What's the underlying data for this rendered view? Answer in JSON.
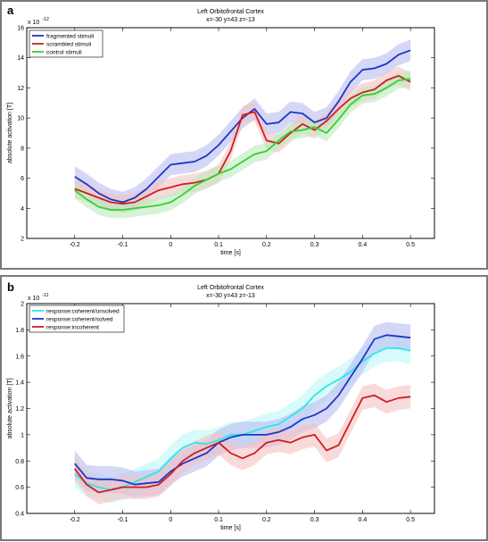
{
  "chart_data": [
    {
      "type": "line",
      "panel_label": "a",
      "title": "Left Orbitofrontal Cortex",
      "subtitle": "x=-30 y=43 z=-13",
      "xlabel": "time [s]",
      "ylabel": "absolute activation [T]",
      "y_multiplier": "x 10",
      "y_exponent": "-12",
      "xlim": [
        -0.3,
        0.55
      ],
      "ylim": [
        2,
        16
      ],
      "xticks": [
        -0.2,
        -0.1,
        0,
        0.1,
        0.2,
        0.3,
        0.4,
        0.5
      ],
      "yticks": [
        2,
        4,
        6,
        8,
        10,
        12,
        14,
        16
      ],
      "x": [
        -0.2,
        -0.175,
        -0.15,
        -0.125,
        -0.1,
        -0.075,
        -0.05,
        -0.025,
        0,
        0.025,
        0.05,
        0.075,
        0.1,
        0.125,
        0.15,
        0.175,
        0.2,
        0.225,
        0.25,
        0.275,
        0.3,
        0.325,
        0.35,
        0.375,
        0.4,
        0.425,
        0.45,
        0.475,
        0.5
      ],
      "legend_position": "top-left",
      "grid": false,
      "series": [
        {
          "name": "fragmented stimuli",
          "color": "#1f35c8",
          "band": "#b9bdf2",
          "band_width": 0.7,
          "values": [
            6.1,
            5.6,
            5.0,
            4.6,
            4.4,
            4.7,
            5.3,
            6.1,
            6.9,
            7.0,
            7.1,
            7.5,
            8.2,
            9.1,
            10.0,
            10.6,
            9.6,
            9.7,
            10.4,
            10.3,
            9.7,
            10.0,
            11.1,
            12.4,
            13.2,
            13.3,
            13.6,
            14.2,
            14.5
          ]
        },
        {
          "name": "scrambled stimuli",
          "color": "#cf1f1f",
          "band": "#f5c1c1",
          "band_width": 0.6,
          "values": [
            5.3,
            5.0,
            4.7,
            4.4,
            4.3,
            4.4,
            4.8,
            5.2,
            5.4,
            5.6,
            5.7,
            5.9,
            6.3,
            7.8,
            10.2,
            10.4,
            8.5,
            8.3,
            9.0,
            9.6,
            9.2,
            9.8,
            10.6,
            11.3,
            11.7,
            11.9,
            12.5,
            12.8,
            12.4
          ]
        },
        {
          "name": "control stimuli",
          "color": "#2dd42d",
          "band": "#bdebbd",
          "band_width": 0.55,
          "values": [
            5.2,
            4.6,
            4.1,
            3.9,
            3.9,
            4.0,
            4.1,
            4.2,
            4.4,
            4.9,
            5.5,
            5.9,
            6.3,
            6.6,
            7.1,
            7.6,
            7.8,
            8.5,
            9.1,
            9.2,
            9.4,
            9.0,
            9.9,
            10.9,
            11.5,
            11.6,
            12.0,
            12.5,
            12.6
          ]
        }
      ]
    },
    {
      "type": "line",
      "panel_label": "b",
      "title": "Left Orbitofrontal Cortex",
      "subtitle": "x=-30 y=43 z=-13",
      "xlabel": "time [s]",
      "ylabel": "absolute activation [T]",
      "y_multiplier": "x 10",
      "y_exponent": "-11",
      "xlim": [
        -0.3,
        0.55
      ],
      "ylim": [
        0.4,
        2.0
      ],
      "xticks": [
        -0.2,
        -0.1,
        0,
        0.1,
        0.2,
        0.3,
        0.4,
        0.5
      ],
      "yticks": [
        0.4,
        0.6,
        0.8,
        1.0,
        1.2,
        1.4,
        1.6,
        1.8,
        2.0
      ],
      "ytick_labels": [
        "0.4",
        "0.6",
        "0.8",
        "1",
        "1.2",
        "1.4",
        "1.6",
        "1.8",
        "2"
      ],
      "x": [
        -0.2,
        -0.175,
        -0.15,
        -0.125,
        -0.1,
        -0.075,
        -0.05,
        -0.025,
        0,
        0.025,
        0.05,
        0.075,
        0.1,
        0.125,
        0.15,
        0.175,
        0.2,
        0.225,
        0.25,
        0.275,
        0.3,
        0.325,
        0.35,
        0.375,
        0.4,
        0.425,
        0.45,
        0.475,
        0.5
      ],
      "legend_position": "top-left",
      "grid": false,
      "series": [
        {
          "name": "response:coherent/unsolved",
          "color": "#2ee6e6",
          "band": "#bdf6f6",
          "band_width": 0.1,
          "values": [
            0.7,
            0.63,
            0.6,
            0.58,
            0.6,
            0.64,
            0.68,
            0.72,
            0.82,
            0.9,
            0.94,
            0.93,
            0.96,
            1.0,
            1.0,
            1.03,
            1.06,
            1.08,
            1.14,
            1.2,
            1.3,
            1.37,
            1.42,
            1.48,
            1.56,
            1.62,
            1.66,
            1.66,
            1.64
          ]
        },
        {
          "name": "response:coherent/solved",
          "color": "#1f35c8",
          "band": "#b9bdf2",
          "band_width": 0.1,
          "values": [
            0.78,
            0.67,
            0.66,
            0.66,
            0.65,
            0.62,
            0.63,
            0.64,
            0.72,
            0.78,
            0.82,
            0.86,
            0.94,
            0.98,
            1.0,
            1.0,
            1.0,
            1.02,
            1.06,
            1.12,
            1.15,
            1.2,
            1.3,
            1.44,
            1.58,
            1.73,
            1.76,
            1.75,
            1.74
          ]
        },
        {
          "name": "response:incoherent",
          "color": "#cf1f1f",
          "band": "#f5c1c1",
          "band_width": 0.09,
          "values": [
            0.74,
            0.62,
            0.56,
            0.58,
            0.6,
            0.6,
            0.6,
            0.62,
            0.7,
            0.8,
            0.86,
            0.9,
            0.94,
            0.86,
            0.82,
            0.86,
            0.94,
            0.96,
            0.94,
            0.98,
            1.0,
            0.88,
            0.92,
            1.1,
            1.28,
            1.3,
            1.25,
            1.28,
            1.29
          ]
        }
      ]
    }
  ]
}
